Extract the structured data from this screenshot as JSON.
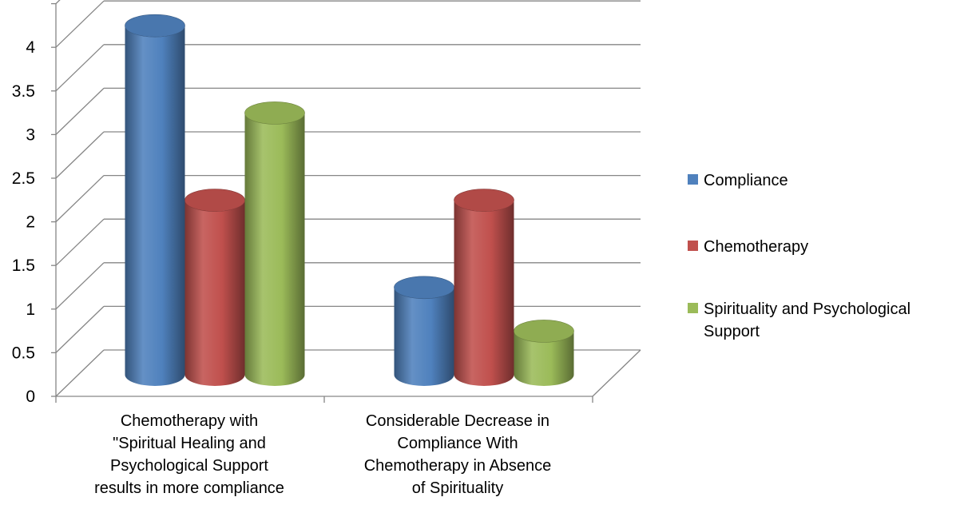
{
  "chart_data": {
    "type": "bar",
    "variant": "3d-cylinder",
    "categories": [
      [
        "Chemotherapy with",
        "\"Spiritual Healing and",
        "Psychological Support",
        "results in more compliance"
      ],
      [
        "Considerable Decrease in",
        "Compliance With",
        "Chemotherapy in Absence",
        "of Spirituality"
      ]
    ],
    "series": [
      {
        "name": "Compliance",
        "values": [
          4,
          1
        ],
        "color": "#4f81bd"
      },
      {
        "name": "Chemotherapy",
        "values": [
          2,
          2
        ],
        "color": "#c0504d"
      },
      {
        "name": "Spirituality and Psychological Support",
        "legend_lines": [
          "Spirituality and Psychological",
          "Support"
        ],
        "values": [
          3,
          0.5
        ],
        "color": "#9bbb59"
      }
    ],
    "ylim": [
      0,
      4.5
    ],
    "yticks": [
      "0",
      "0.5",
      "1",
      "1.5",
      "2",
      "2.5",
      "3",
      "3.5",
      "4"
    ],
    "gridlines": true,
    "legend_position": "right",
    "title": "",
    "xlabel": "",
    "ylabel": ""
  }
}
